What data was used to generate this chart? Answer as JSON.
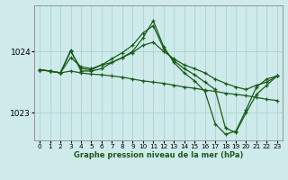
{
  "xlabel": "Graphe pression niveau de la mer (hPa)",
  "background_color": "#ceeaea",
  "grid_color": "#aad4d4",
  "line_color": "#1a5c1a",
  "xlim": [
    -0.5,
    23.5
  ],
  "ylim": [
    1022.55,
    1024.75
  ],
  "yticks": [
    1023,
    1024
  ],
  "xticks": [
    0,
    1,
    2,
    3,
    4,
    5,
    6,
    7,
    8,
    9,
    10,
    11,
    12,
    13,
    14,
    15,
    16,
    17,
    18,
    19,
    20,
    21,
    22,
    23
  ],
  "series": [
    [
      1023.7,
      1023.68,
      1023.65,
      1023.68,
      1023.65,
      1023.63,
      1023.62,
      1023.6,
      1023.58,
      1023.55,
      1023.52,
      1023.5,
      1023.48,
      1023.45,
      1023.42,
      1023.4,
      1023.37,
      1023.35,
      1023.32,
      1023.3,
      1023.28,
      1023.25,
      1023.22,
      1023.2
    ],
    [
      1023.7,
      1023.68,
      1023.65,
      1023.9,
      1023.75,
      1023.72,
      1023.78,
      1023.82,
      1023.9,
      1023.98,
      1024.1,
      1024.15,
      1024.0,
      1023.88,
      1023.78,
      1023.72,
      1023.65,
      1023.55,
      1023.48,
      1023.42,
      1023.38,
      1023.45,
      1023.5,
      1023.6
    ],
    [
      1023.7,
      1023.68,
      1023.65,
      1024.0,
      1023.72,
      1023.7,
      1023.78,
      1023.88,
      1023.98,
      1024.1,
      1024.3,
      1024.42,
      1024.05,
      1023.85,
      1023.72,
      1023.62,
      1023.5,
      1023.38,
      1022.75,
      1022.68,
      1023.0,
      1023.3,
      1023.45,
      1023.6
    ],
    [
      1023.7,
      1023.68,
      1023.65,
      1024.02,
      1023.68,
      1023.68,
      1023.72,
      1023.82,
      1023.9,
      1024.0,
      1024.22,
      1024.5,
      1024.08,
      1023.82,
      1023.65,
      1023.52,
      1023.35,
      1022.82,
      1022.65,
      1022.7,
      1023.05,
      1023.42,
      1023.55,
      1023.6
    ]
  ]
}
